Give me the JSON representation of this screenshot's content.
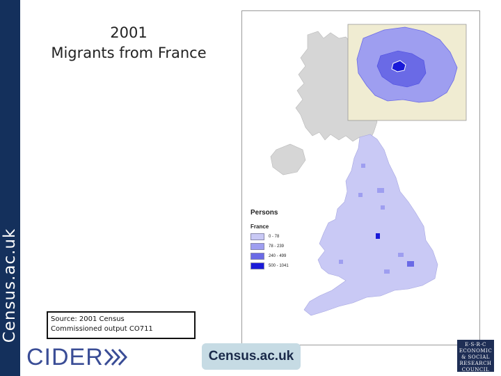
{
  "sidebar": {
    "brand": "Census.ac.uk"
  },
  "title": {
    "year": "2001",
    "subject": "Migrants from France"
  },
  "legend": {
    "heading": "Persons",
    "subheading": "France",
    "classes": [
      {
        "label": "0 - 78",
        "color": "#c9c9f5"
      },
      {
        "label": "78 - 239",
        "color": "#9e9ef0"
      },
      {
        "label": "240 - 499",
        "color": "#6a6ae6"
      },
      {
        "label": "500 - 1041",
        "color": "#1a1ad8"
      }
    ]
  },
  "source": {
    "line1": "Source: 2001 Census",
    "line2": "Commissioned output CO711"
  },
  "logos": {
    "cider": "CIDER",
    "census": "Census.ac.uk",
    "esrc": [
      "E·S·R·C",
      "ECONOMIC",
      "& SOCIAL",
      "RESEARCH",
      "COUNCIL"
    ]
  },
  "colors": {
    "sidebar": "#14305c",
    "scotland": "#d6d6d6",
    "inset_bg": "#f0ecd2"
  }
}
